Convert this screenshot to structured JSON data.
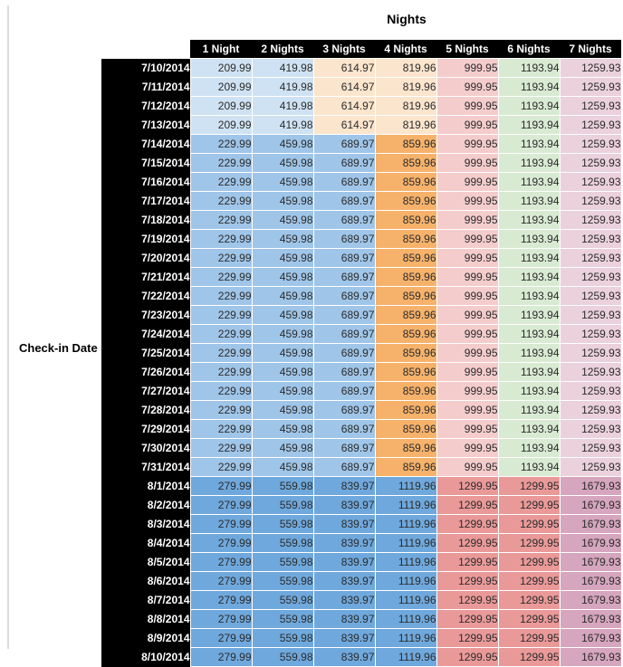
{
  "title": "Nights",
  "row_axis_label": "Check-in Date",
  "colors": {
    "paleBlue": "#cfe2f3",
    "cream": "#fce5cd",
    "medBlue": "#9fc5e8",
    "orange": "#f6b26b",
    "lightRed": "#f4cccc",
    "lightGreen": "#d9ead3",
    "lightMagenta": "#ead1dc",
    "deepBlue": "#6fa8dc",
    "salmon": "#ea9999",
    "mauve": "#d5a6bd",
    "header_bg": "#000000",
    "header_text": "#ffffff",
    "cell_text": "#2b2b2b"
  },
  "bands": {
    "early_july": [
      "paleBlue",
      "paleBlue",
      "cream",
      "cream",
      "lightRed",
      "lightGreen",
      "lightMagenta"
    ],
    "mid_july": [
      "medBlue",
      "medBlue",
      "medBlue",
      "orange",
      "lightRed",
      "lightGreen",
      "lightMagenta"
    ],
    "august": [
      "deepBlue",
      "deepBlue",
      "deepBlue",
      "deepBlue",
      "salmon",
      "salmon",
      "mauve"
    ]
  },
  "table": {
    "column_headers": [
      "1 Night",
      "2 Nights",
      "3 Nights",
      "4 Nights",
      "5 Nights",
      "6 Nights",
      "7 Nights"
    ],
    "rows": [
      {
        "date": "7/10/2014",
        "band": "early_july",
        "values": [
          "209.99",
          "419.98",
          "614.97",
          "819.96",
          "999.95",
          "1193.94",
          "1259.93"
        ]
      },
      {
        "date": "7/11/2014",
        "band": "early_july",
        "values": [
          "209.99",
          "419.98",
          "614.97",
          "819.96",
          "999.95",
          "1193.94",
          "1259.93"
        ]
      },
      {
        "date": "7/12/2014",
        "band": "early_july",
        "values": [
          "209.99",
          "419.98",
          "614.97",
          "819.96",
          "999.95",
          "1193.94",
          "1259.93"
        ]
      },
      {
        "date": "7/13/2014",
        "band": "early_july",
        "values": [
          "209.99",
          "419.98",
          "614.97",
          "819.96",
          "999.95",
          "1193.94",
          "1259.93"
        ]
      },
      {
        "date": "7/14/2014",
        "band": "mid_july",
        "values": [
          "229.99",
          "459.98",
          "689.97",
          "859.96",
          "999.95",
          "1193.94",
          "1259.93"
        ]
      },
      {
        "date": "7/15/2014",
        "band": "mid_july",
        "values": [
          "229.99",
          "459.98",
          "689.97",
          "859.96",
          "999.95",
          "1193.94",
          "1259.93"
        ]
      },
      {
        "date": "7/16/2014",
        "band": "mid_july",
        "values": [
          "229.99",
          "459.98",
          "689.97",
          "859.96",
          "999.95",
          "1193.94",
          "1259.93"
        ]
      },
      {
        "date": "7/17/2014",
        "band": "mid_july",
        "values": [
          "229.99",
          "459.98",
          "689.97",
          "859.96",
          "999.95",
          "1193.94",
          "1259.93"
        ]
      },
      {
        "date": "7/18/2014",
        "band": "mid_july",
        "values": [
          "229.99",
          "459.98",
          "689.97",
          "859.96",
          "999.95",
          "1193.94",
          "1259.93"
        ]
      },
      {
        "date": "7/19/2014",
        "band": "mid_july",
        "values": [
          "229.99",
          "459.98",
          "689.97",
          "859.96",
          "999.95",
          "1193.94",
          "1259.93"
        ]
      },
      {
        "date": "7/20/2014",
        "band": "mid_july",
        "values": [
          "229.99",
          "459.98",
          "689.97",
          "859.96",
          "999.95",
          "1193.94",
          "1259.93"
        ]
      },
      {
        "date": "7/21/2014",
        "band": "mid_july",
        "values": [
          "229.99",
          "459.98",
          "689.97",
          "859.96",
          "999.95",
          "1193.94",
          "1259.93"
        ]
      },
      {
        "date": "7/22/2014",
        "band": "mid_july",
        "values": [
          "229.99",
          "459.98",
          "689.97",
          "859.96",
          "999.95",
          "1193.94",
          "1259.93"
        ]
      },
      {
        "date": "7/23/2014",
        "band": "mid_july",
        "values": [
          "229.99",
          "459.98",
          "689.97",
          "859.96",
          "999.95",
          "1193.94",
          "1259.93"
        ]
      },
      {
        "date": "7/24/2014",
        "band": "mid_july",
        "values": [
          "229.99",
          "459.98",
          "689.97",
          "859.96",
          "999.95",
          "1193.94",
          "1259.93"
        ]
      },
      {
        "date": "7/25/2014",
        "band": "mid_july",
        "values": [
          "229.99",
          "459.98",
          "689.97",
          "859.96",
          "999.95",
          "1193.94",
          "1259.93"
        ]
      },
      {
        "date": "7/26/2014",
        "band": "mid_july",
        "values": [
          "229.99",
          "459.98",
          "689.97",
          "859.96",
          "999.95",
          "1193.94",
          "1259.93"
        ]
      },
      {
        "date": "7/27/2014",
        "band": "mid_july",
        "values": [
          "229.99",
          "459.98",
          "689.97",
          "859.96",
          "999.95",
          "1193.94",
          "1259.93"
        ]
      },
      {
        "date": "7/28/2014",
        "band": "mid_july",
        "values": [
          "229.99",
          "459.98",
          "689.97",
          "859.96",
          "999.95",
          "1193.94",
          "1259.93"
        ]
      },
      {
        "date": "7/29/2014",
        "band": "mid_july",
        "values": [
          "229.99",
          "459.98",
          "689.97",
          "859.96",
          "999.95",
          "1193.94",
          "1259.93"
        ]
      },
      {
        "date": "7/30/2014",
        "band": "mid_july",
        "values": [
          "229.99",
          "459.98",
          "689.97",
          "859.96",
          "999.95",
          "1193.94",
          "1259.93"
        ]
      },
      {
        "date": "7/31/2014",
        "band": "mid_july",
        "values": [
          "229.99",
          "459.98",
          "689.97",
          "859.96",
          "999.95",
          "1193.94",
          "1259.93"
        ]
      },
      {
        "date": "8/1/2014",
        "band": "august",
        "values": [
          "279.99",
          "559.98",
          "839.97",
          "1119.96",
          "1299.95",
          "1299.95",
          "1679.93"
        ]
      },
      {
        "date": "8/2/2014",
        "band": "august",
        "values": [
          "279.99",
          "559.98",
          "839.97",
          "1119.96",
          "1299.95",
          "1299.95",
          "1679.93"
        ]
      },
      {
        "date": "8/3/2014",
        "band": "august",
        "values": [
          "279.99",
          "559.98",
          "839.97",
          "1119.96",
          "1299.95",
          "1299.95",
          "1679.93"
        ]
      },
      {
        "date": "8/4/2014",
        "band": "august",
        "values": [
          "279.99",
          "559.98",
          "839.97",
          "1119.96",
          "1299.95",
          "1299.95",
          "1679.93"
        ]
      },
      {
        "date": "8/5/2014",
        "band": "august",
        "values": [
          "279.99",
          "559.98",
          "839.97",
          "1119.96",
          "1299.95",
          "1299.95",
          "1679.93"
        ]
      },
      {
        "date": "8/6/2014",
        "band": "august",
        "values": [
          "279.99",
          "559.98",
          "839.97",
          "1119.96",
          "1299.95",
          "1299.95",
          "1679.93"
        ]
      },
      {
        "date": "8/7/2014",
        "band": "august",
        "values": [
          "279.99",
          "559.98",
          "839.97",
          "1119.96",
          "1299.95",
          "1299.95",
          "1679.93"
        ]
      },
      {
        "date": "8/8/2014",
        "band": "august",
        "values": [
          "279.99",
          "559.98",
          "839.97",
          "1119.96",
          "1299.95",
          "1299.95",
          "1679.93"
        ]
      },
      {
        "date": "8/9/2014",
        "band": "august",
        "values": [
          "279.99",
          "559.98",
          "839.97",
          "1119.96",
          "1299.95",
          "1299.95",
          "1679.93"
        ]
      },
      {
        "date": "8/10/2014",
        "band": "august",
        "values": [
          "279.99",
          "559.98",
          "839.97",
          "1119.96",
          "1299.95",
          "1299.95",
          "1679.93"
        ]
      }
    ]
  }
}
